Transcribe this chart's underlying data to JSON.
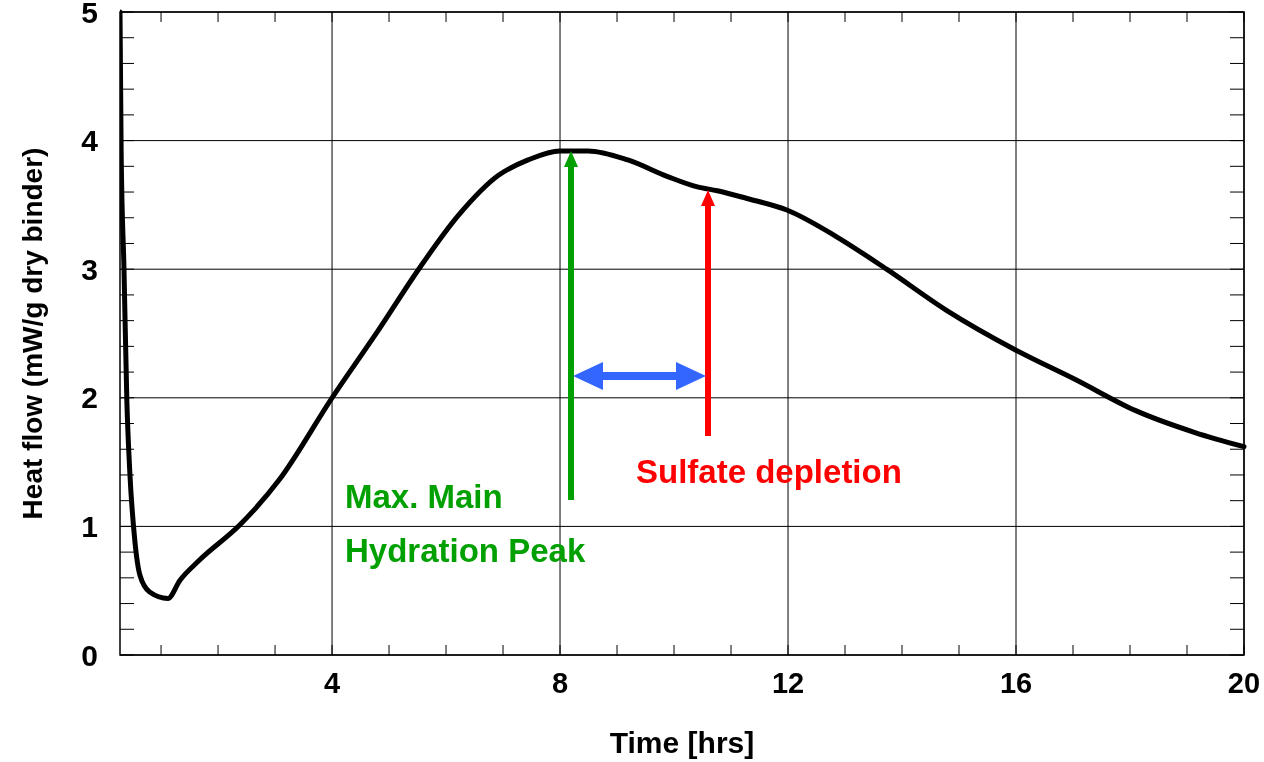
{
  "chart_data": {
    "type": "line",
    "xlabel": "Time [hrs]",
    "ylabel": "Heat flow (mW/g dry binder)",
    "xlim": [
      0.28,
      20
    ],
    "ylim": [
      0,
      5
    ],
    "xticks": [
      {
        "value": 1,
        "label": null
      },
      {
        "value": 2,
        "label": null
      },
      {
        "value": 3,
        "label": null
      },
      4,
      {
        "value": 5,
        "label": null
      },
      {
        "value": 6,
        "label": null
      },
      {
        "value": 7,
        "label": null
      },
      8,
      {
        "value": 9,
        "label": null
      },
      {
        "value": 10,
        "label": null
      },
      {
        "value": 11,
        "label": null
      },
      12,
      {
        "value": 13,
        "label": null
      },
      {
        "value": 14,
        "label": null
      },
      {
        "value": 15,
        "label": null
      },
      16,
      {
        "value": 17,
        "label": null
      },
      {
        "value": 18,
        "label": null
      },
      {
        "value": 19,
        "label": null
      },
      20
    ],
    "yticks": [
      0,
      {
        "value": 0.2,
        "label": null
      },
      {
        "value": 0.4,
        "label": null
      },
      {
        "value": 0.6,
        "label": null
      },
      {
        "value": 0.8,
        "label": null
      },
      1,
      {
        "value": 1.2,
        "label": null
      },
      {
        "value": 1.4,
        "label": null
      },
      {
        "value": 1.6,
        "label": null
      },
      {
        "value": 1.8,
        "label": null
      },
      2,
      {
        "value": 2.2,
        "label": null
      },
      {
        "value": 2.4,
        "label": null
      },
      {
        "value": 2.6,
        "label": null
      },
      {
        "value": 2.8,
        "label": null
      },
      3,
      {
        "value": 3.2,
        "label": null
      },
      {
        "value": 3.4,
        "label": null
      },
      {
        "value": 3.6,
        "label": null
      },
      {
        "value": 3.8,
        "label": null
      },
      4,
      {
        "value": 4.2,
        "label": null
      },
      {
        "value": 4.4,
        "label": null
      },
      {
        "value": 4.6,
        "label": null
      },
      {
        "value": 4.8,
        "label": null
      },
      5
    ],
    "grid": true,
    "marker": "none",
    "line_style": "solid",
    "series": [
      {
        "color": "#000000",
        "x": [
          0.28,
          0.3,
          0.35,
          0.4,
          0.45,
          0.54,
          0.63,
          0.8,
          1.12,
          1.33,
          1.68,
          2.38,
          3.07,
          4.0,
          4.82,
          5.52,
          6.22,
          6.92,
          7.44,
          8.0,
          8.49,
          9.19,
          9.89,
          10.41,
          10.76,
          11.28,
          11.98,
          12.86,
          13.73,
          14.78,
          16.0,
          17.05,
          18.1,
          19.14,
          20.0
        ],
        "values": [
          5.0,
          3.92,
          3.0,
          1.98,
          1.44,
          0.89,
          0.62,
          0.49,
          0.44,
          0.58,
          0.74,
          1.01,
          1.36,
          2.0,
          2.53,
          3.0,
          3.42,
          3.73,
          3.85,
          3.92,
          3.92,
          3.85,
          3.72,
          3.64,
          3.61,
          3.55,
          3.46,
          3.25,
          3.0,
          2.68,
          2.37,
          2.14,
          1.9,
          1.73,
          1.62
        ]
      }
    ],
    "annotations": [
      "Max. Main\nHydration Peak",
      "Sulfate depletion"
    ]
  }
}
